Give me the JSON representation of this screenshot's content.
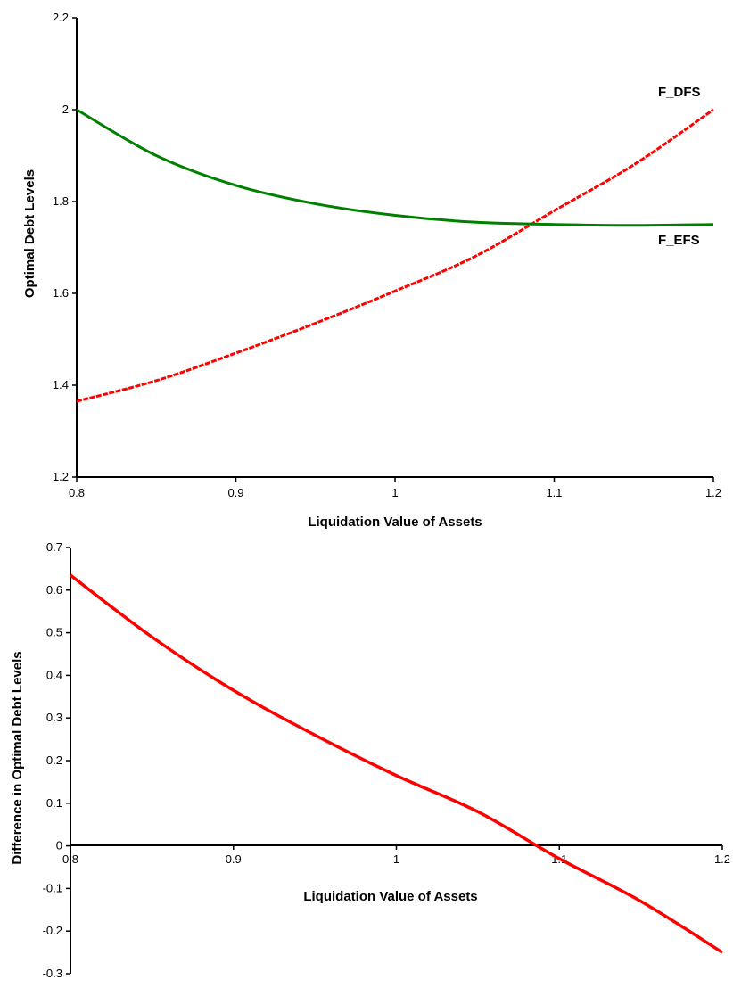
{
  "chart_data": [
    {
      "type": "line",
      "title": "",
      "xlabel": "Liquidation Value of Assets",
      "ylabel": "Optimal Debt Levels",
      "xlim": [
        0.8,
        1.2
      ],
      "ylim": [
        1.2,
        2.2
      ],
      "x_ticks": [
        "0.8",
        "0.9",
        "1",
        "1.1",
        "1.2"
      ],
      "y_ticks": [
        "1.2",
        "1.4",
        "1.6",
        "1.8",
        "2",
        "2.2"
      ],
      "grid": false,
      "series": [
        {
          "name": "F_DFS",
          "color": "#ff0000",
          "style": "dashed",
          "x": [
            0.8,
            0.85,
            0.9,
            0.95,
            1.0,
            1.05,
            1.1,
            1.15,
            1.2
          ],
          "y": [
            1.365,
            1.41,
            1.47,
            1.535,
            1.605,
            1.68,
            1.78,
            1.88,
            2.0
          ]
        },
        {
          "name": "F_EFS",
          "color": "#008000",
          "style": "solid",
          "x": [
            0.8,
            0.85,
            0.9,
            0.95,
            1.0,
            1.05,
            1.1,
            1.15,
            1.2
          ],
          "y": [
            2.0,
            1.9,
            1.835,
            1.795,
            1.77,
            1.755,
            1.75,
            1.748,
            1.75
          ]
        }
      ]
    },
    {
      "type": "line",
      "title": "",
      "xlabel": "Liquidation Value of Assets",
      "ylabel": "Difference in Optimal Debt Levels",
      "xlim": [
        0.8,
        1.2
      ],
      "ylim": [
        -0.3,
        0.7
      ],
      "x_ticks": [
        "0.8",
        "0.9",
        "1",
        "1.1",
        "1.2"
      ],
      "y_ticks": [
        "-0.3",
        "-0.2",
        "-0.1",
        "0",
        "0.1",
        "0.2",
        "0.3",
        "0.4",
        "0.5",
        "0.6",
        "0.7"
      ],
      "grid": false,
      "series": [
        {
          "color": "#ff0000",
          "style": "solid",
          "x": [
            0.8,
            0.85,
            0.9,
            0.95,
            1.0,
            1.05,
            1.1,
            1.15,
            1.2
          ],
          "y": [
            0.635,
            0.49,
            0.365,
            0.26,
            0.165,
            0.08,
            -0.03,
            -0.13,
            -0.25
          ]
        }
      ]
    }
  ]
}
